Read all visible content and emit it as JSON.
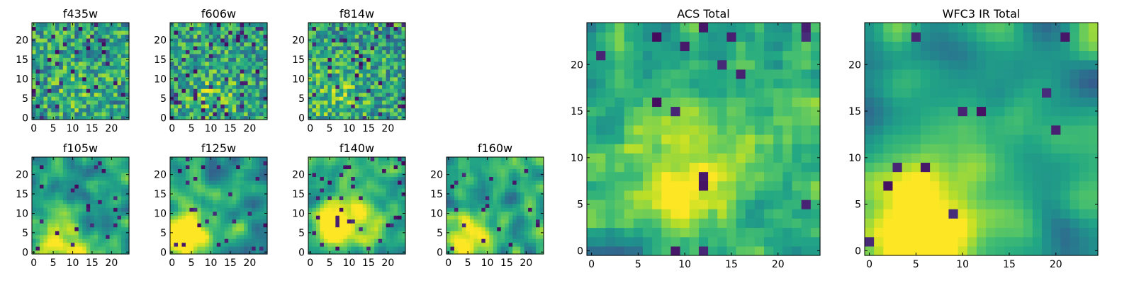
{
  "chart_data": [
    {
      "type": "heatmap",
      "title": "f435w",
      "grid_size": 25,
      "colormap": "viridis",
      "x_ticks": [
        "0",
        "5",
        "10",
        "15",
        "20"
      ],
      "y_ticks": [
        "0",
        "5",
        "10",
        "15",
        "20"
      ],
      "xlim": [
        0,
        24
      ],
      "ylim": [
        0,
        24
      ],
      "vlim": [
        0,
        1
      ],
      "smoothness": 0,
      "seed": 11,
      "dark_bias": 0.06,
      "blob": {
        "cx": 11,
        "cy": 7,
        "r": 9,
        "amp": 0.1
      }
    },
    {
      "type": "heatmap",
      "title": "f606w",
      "grid_size": 25,
      "colormap": "viridis",
      "x_ticks": [
        "0",
        "5",
        "10",
        "15",
        "20"
      ],
      "y_ticks": [
        "0",
        "5",
        "10",
        "15",
        "20"
      ],
      "xlim": [
        0,
        24
      ],
      "ylim": [
        0,
        24
      ],
      "vlim": [
        0,
        1
      ],
      "smoothness": 0,
      "seed": 23,
      "dark_bias": 0.07,
      "blob": {
        "cx": 10,
        "cy": 6,
        "r": 9,
        "amp": 0.15
      }
    },
    {
      "type": "heatmap",
      "title": "f814w",
      "grid_size": 25,
      "colormap": "viridis",
      "x_ticks": [
        "0",
        "5",
        "10",
        "15",
        "20"
      ],
      "y_ticks": [
        "0",
        "5",
        "10",
        "15",
        "20"
      ],
      "xlim": [
        0,
        24
      ],
      "ylim": [
        0,
        24
      ],
      "vlim": [
        0,
        1
      ],
      "smoothness": 0,
      "seed": 37,
      "dark_bias": 0.06,
      "blob": {
        "cx": 7,
        "cy": 6,
        "r": 10,
        "amp": 0.15
      }
    },
    {
      "type": "heatmap",
      "title": "f105w",
      "grid_size": 25,
      "colormap": "viridis",
      "x_ticks": [
        "0",
        "5",
        "10",
        "15",
        "20"
      ],
      "y_ticks": [
        "0",
        "5",
        "10",
        "15",
        "20"
      ],
      "xlim": [
        0,
        24
      ],
      "ylim": [
        0,
        24
      ],
      "vlim": [
        0,
        1
      ],
      "smoothness": 2,
      "seed": 41,
      "dark_bias": 0.04,
      "blob": {
        "cx": 6,
        "cy": 3,
        "r": 10,
        "amp": 0.5
      }
    },
    {
      "type": "heatmap",
      "title": "f125w",
      "grid_size": 25,
      "colormap": "viridis",
      "x_ticks": [
        "0",
        "5",
        "10",
        "15",
        "20"
      ],
      "y_ticks": [
        "0",
        "5",
        "10",
        "15",
        "20"
      ],
      "xlim": [
        0,
        24
      ],
      "ylim": [
        0,
        24
      ],
      "vlim": [
        0,
        1
      ],
      "smoothness": 2,
      "seed": 53,
      "dark_bias": 0.05,
      "blob": {
        "cx": 4,
        "cy": 3,
        "r": 9,
        "amp": 0.55
      }
    },
    {
      "type": "heatmap",
      "title": "f140w",
      "grid_size": 25,
      "colormap": "viridis",
      "x_ticks": [
        "0",
        "5",
        "10",
        "15",
        "20"
      ],
      "y_ticks": [
        "0",
        "5",
        "10",
        "15",
        "20"
      ],
      "xlim": [
        0,
        24
      ],
      "ylim": [
        0,
        24
      ],
      "vlim": [
        0,
        1
      ],
      "smoothness": 2,
      "seed": 67,
      "dark_bias": 0.04,
      "blob": {
        "cx": 8,
        "cy": 8,
        "r": 12,
        "amp": 0.45
      }
    },
    {
      "type": "heatmap",
      "title": "f160w",
      "grid_size": 25,
      "colormap": "viridis",
      "x_ticks": [
        "0",
        "5",
        "10",
        "15",
        "20"
      ],
      "y_ticks": [
        "0",
        "5",
        "10",
        "15",
        "20"
      ],
      "xlim": [
        0,
        24
      ],
      "ylim": [
        0,
        24
      ],
      "vlim": [
        0,
        1
      ],
      "smoothness": 2,
      "seed": 79,
      "dark_bias": 0.04,
      "blob": {
        "cx": 5,
        "cy": 3,
        "r": 9,
        "amp": 0.55
      }
    },
    {
      "type": "heatmap",
      "title": "ACS Total",
      "grid_size": 25,
      "colormap": "viridis",
      "x_ticks": [
        "0",
        "5",
        "10",
        "15",
        "20"
      ],
      "y_ticks": [
        "0",
        "5",
        "10",
        "15",
        "20"
      ],
      "xlim": [
        0,
        24
      ],
      "ylim": [
        0,
        24
      ],
      "vlim": [
        0,
        1
      ],
      "smoothness": 1,
      "seed": 97,
      "dark_bias": 0.03,
      "blob": {
        "cx": 10,
        "cy": 8,
        "r": 10,
        "amp": 0.3
      }
    },
    {
      "type": "heatmap",
      "title": "WFC3 IR Total",
      "grid_size": 25,
      "colormap": "viridis",
      "x_ticks": [
        "0",
        "5",
        "10",
        "15",
        "20"
      ],
      "y_ticks": [
        "0",
        "5",
        "10",
        "15",
        "20"
      ],
      "xlim": [
        0,
        24
      ],
      "ylim": [
        0,
        24
      ],
      "vlim": [
        0,
        1
      ],
      "smoothness": 3,
      "seed": 113,
      "dark_bias": 0.02,
      "blob": {
        "cx": 6,
        "cy": 3,
        "r": 11,
        "amp": 0.6
      }
    }
  ]
}
